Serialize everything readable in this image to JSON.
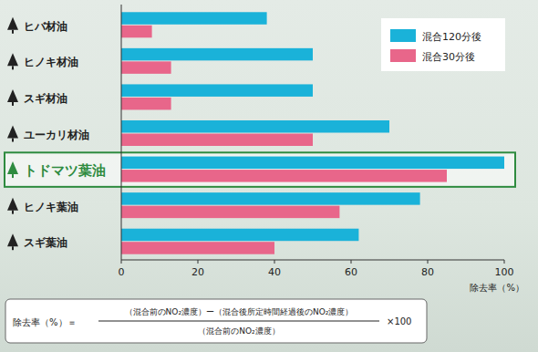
{
  "chart_data": {
    "type": "bar",
    "orientation": "horizontal",
    "categories": [
      "ヒバ材油",
      "ヒノキ材油",
      "スギ材油",
      "ユーカリ材油",
      "トドマツ葉油",
      "ヒノキ葉油",
      "スギ葉油"
    ],
    "series": [
      {
        "name": "混合120分後",
        "color": "#1ab2d9",
        "values": [
          38,
          50,
          50,
          70,
          100,
          78,
          62
        ]
      },
      {
        "name": "混合30分後",
        "color": "#e8668a",
        "values": [
          8,
          13,
          13,
          50,
          85,
          57,
          40
        ]
      }
    ],
    "xlabel": "除去率（%）",
    "xlim": [
      0,
      100
    ],
    "xticks": [
      0,
      20,
      40,
      60,
      80,
      100
    ],
    "grid": false,
    "legend": "upper right",
    "annotations": [
      "除去率（%）＝",
      "（混合前のNO₂濃度）ー（混合後所定時間経過後のNO₂濃度）",
      "（混合前のNO₂濃度）",
      "×100"
    ]
  }
}
